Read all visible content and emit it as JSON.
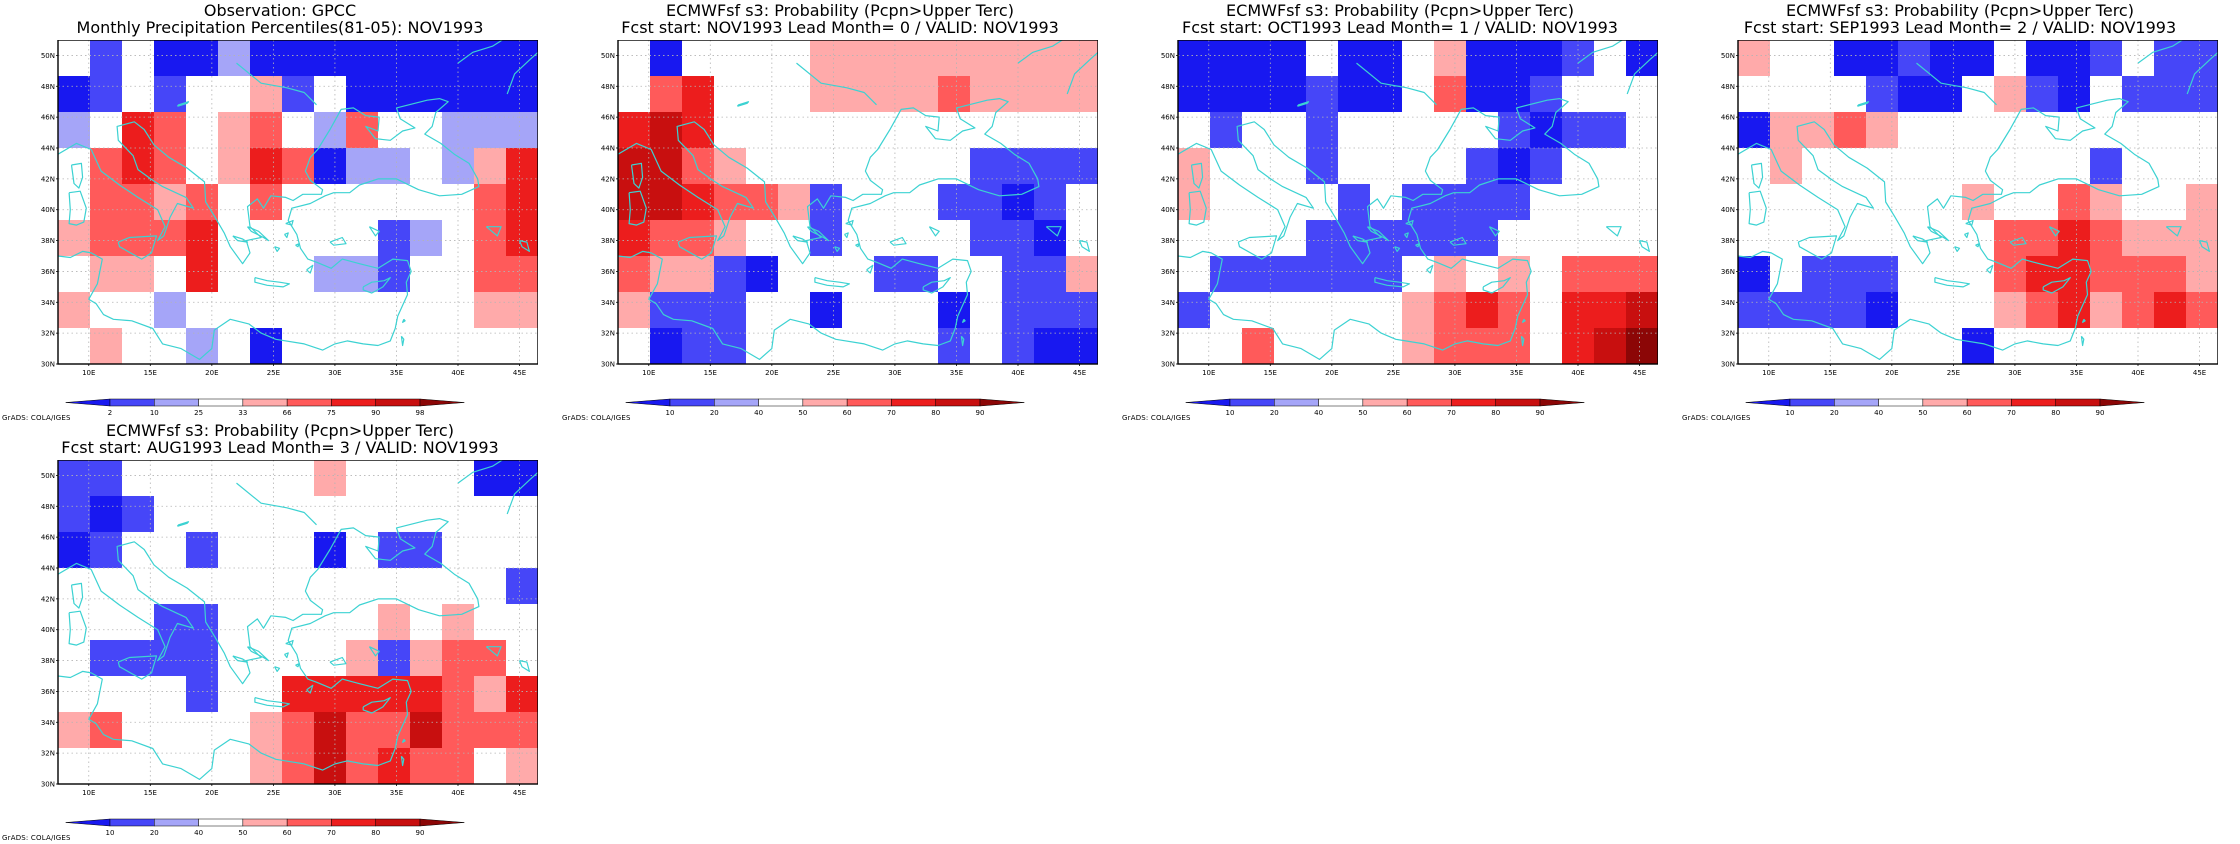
{
  "colors": {
    "c1": "#1818f0",
    "c2": "#4646f8",
    "c3": "#a5a5f8",
    "c4": "#ffffff",
    "c5": "#ffaaaa",
    "c6": "#ff5a5a",
    "c7": "#ec1d1d",
    "c8": "#c80f0f",
    "c9": "#8c0606",
    "coast": "#3cd2d2",
    "frame": "#000000",
    "grid": "#b4b4b4"
  },
  "panels": [
    {
      "id": "gpcc",
      "title1": "Observation: GPCC",
      "title2": "Monthly Precipitation Percentiles(81-05): NOV1993",
      "legend": [
        "2",
        "10",
        "25",
        "33",
        "66",
        "75",
        "90",
        "98"
      ],
      "grid": [
        [
          "c4",
          "c2",
          "c4",
          "c1",
          "c1",
          "c3",
          "c1",
          "c1",
          "c1",
          "c1",
          "c1",
          "c1",
          "c1",
          "c1",
          "c1"
        ],
        [
          "c1",
          "c2",
          "c4",
          "c2",
          "c4",
          "c4",
          "c5",
          "c2",
          "c4",
          "c1",
          "c1",
          "c1",
          "c1",
          "c1",
          "c1"
        ],
        [
          "c3",
          "c4",
          "c7",
          "c6",
          "c4",
          "c5",
          "c6",
          "c4",
          "c3",
          "c6",
          "c4",
          "c4",
          "c3",
          "c3",
          "c3"
        ],
        [
          "c4",
          "c6",
          "c7",
          "c6",
          "c4",
          "c5",
          "c7",
          "c6",
          "c1",
          "c3",
          "c3",
          "c4",
          "c3",
          "c5",
          "c7"
        ],
        [
          "c4",
          "c6",
          "c6",
          "c5",
          "c6",
          "c4",
          "c6",
          "c4",
          "c4",
          "c4",
          "c4",
          "c4",
          "c4",
          "c6",
          "c7"
        ],
        [
          "c5",
          "c6",
          "c6",
          "c6",
          "c7",
          "c4",
          "c4",
          "c4",
          "c4",
          "c4",
          "c2",
          "c3",
          "c4",
          "c6",
          "c7"
        ],
        [
          "c4",
          "c5",
          "c5",
          "c4",
          "c7",
          "c4",
          "c4",
          "c4",
          "c3",
          "c3",
          "c2",
          "c4",
          "c4",
          "c6",
          "c6"
        ],
        [
          "c5",
          "c4",
          "c4",
          "c3",
          "c4",
          "c4",
          "c4",
          "c4",
          "c4",
          "c4",
          "c4",
          "c4",
          "c4",
          "c5",
          "c5"
        ],
        [
          "c4",
          "c5",
          "c4",
          "c4",
          "c3",
          "c4",
          "c1",
          "c4",
          "c4",
          "c4",
          "c4",
          "c4",
          "c4",
          "c4",
          "c4"
        ]
      ]
    },
    {
      "id": "lead0",
      "title1": "ECMWFsf s3: Probability (Pcpn>Upper Terc)",
      "title2": "Fcst start: NOV1993  Lead Month= 0 / VALID: NOV1993",
      "legend": [
        "10",
        "20",
        "40",
        "50",
        "60",
        "70",
        "80",
        "90"
      ],
      "grid": [
        [
          "c4",
          "c1",
          "c4",
          "c4",
          "c4",
          "c4",
          "c5",
          "c5",
          "c5",
          "c5",
          "c5",
          "c5",
          "c5",
          "c5",
          "c5"
        ],
        [
          "c4",
          "c6",
          "c7",
          "c4",
          "c4",
          "c4",
          "c5",
          "c5",
          "c5",
          "c5",
          "c6",
          "c5",
          "c5",
          "c5",
          "c5"
        ],
        [
          "c7",
          "c8",
          "c7",
          "c4",
          "c4",
          "c4",
          "c4",
          "c4",
          "c4",
          "c4",
          "c4",
          "c4",
          "c4",
          "c4",
          "c4"
        ],
        [
          "c8",
          "c8",
          "c6",
          "c5",
          "c4",
          "c4",
          "c4",
          "c4",
          "c4",
          "c4",
          "c4",
          "c2",
          "c2",
          "c2",
          "c2"
        ],
        [
          "c8",
          "c8",
          "c7",
          "c6",
          "c6",
          "c5",
          "c2",
          "c4",
          "c4",
          "c4",
          "c2",
          "c2",
          "c1",
          "c2",
          "c4"
        ],
        [
          "c7",
          "c6",
          "c6",
          "c5",
          "c4",
          "c4",
          "c2",
          "c4",
          "c4",
          "c4",
          "c4",
          "c2",
          "c2",
          "c1",
          "c4"
        ],
        [
          "c6",
          "c5",
          "c5",
          "c2",
          "c1",
          "c4",
          "c4",
          "c4",
          "c2",
          "c2",
          "c4",
          "c4",
          "c2",
          "c2",
          "c5"
        ],
        [
          "c5",
          "c2",
          "c2",
          "c2",
          "c4",
          "c4",
          "c1",
          "c4",
          "c4",
          "c4",
          "c1",
          "c4",
          "c2",
          "c2",
          "c2"
        ],
        [
          "c4",
          "c1",
          "c2",
          "c2",
          "c4",
          "c4",
          "c4",
          "c4",
          "c4",
          "c4",
          "c2",
          "c4",
          "c2",
          "c1",
          "c1"
        ]
      ]
    },
    {
      "id": "lead1",
      "title1": "ECMWFsf s3: Probability (Pcpn>Upper Terc)",
      "title2": "Fcst start: OCT1993  Lead Month= 1 / VALID: NOV1993",
      "legend": [
        "10",
        "20",
        "40",
        "50",
        "60",
        "70",
        "80",
        "90"
      ],
      "grid": [
        [
          "c1",
          "c1",
          "c1",
          "c1",
          "c4",
          "c1",
          "c1",
          "c4",
          "c5",
          "c1",
          "c1",
          "c1",
          "c2",
          "c4",
          "c1"
        ],
        [
          "c1",
          "c1",
          "c1",
          "c1",
          "c2",
          "c1",
          "c1",
          "c4",
          "c6",
          "c1",
          "c1",
          "c2",
          "c4",
          "c4",
          "c4"
        ],
        [
          "c4",
          "c2",
          "c4",
          "c4",
          "c2",
          "c4",
          "c4",
          "c4",
          "c4",
          "c4",
          "c2",
          "c1",
          "c2",
          "c2",
          "c4"
        ],
        [
          "c5",
          "c4",
          "c4",
          "c4",
          "c2",
          "c4",
          "c4",
          "c4",
          "c4",
          "c2",
          "c1",
          "c2",
          "c4",
          "c4",
          "c4"
        ],
        [
          "c5",
          "c4",
          "c4",
          "c4",
          "c4",
          "c2",
          "c4",
          "c2",
          "c2",
          "c2",
          "c2",
          "c4",
          "c4",
          "c4",
          "c4"
        ],
        [
          "c4",
          "c4",
          "c4",
          "c4",
          "c2",
          "c2",
          "c2",
          "c2",
          "c2",
          "c2",
          "c4",
          "c4",
          "c4",
          "c4",
          "c4"
        ],
        [
          "c4",
          "c2",
          "c2",
          "c2",
          "c2",
          "c2",
          "c2",
          "c4",
          "c5",
          "c4",
          "c5",
          "c4",
          "c6",
          "c6",
          "c6"
        ],
        [
          "c2",
          "c4",
          "c4",
          "c4",
          "c4",
          "c4",
          "c4",
          "c5",
          "c6",
          "c7",
          "c6",
          "c4",
          "c7",
          "c7",
          "c8"
        ],
        [
          "c4",
          "c4",
          "c6",
          "c4",
          "c4",
          "c4",
          "c4",
          "c5",
          "c6",
          "c6",
          "c6",
          "c4",
          "c7",
          "c8",
          "c9"
        ]
      ]
    },
    {
      "id": "lead2",
      "title1": "ECMWFsf s3: Probability (Pcpn>Upper Terc)",
      "title2": "Fcst start: SEP1993  Lead Month= 2 / VALID: NOV1993",
      "legend": [
        "10",
        "20",
        "40",
        "50",
        "60",
        "70",
        "80",
        "90"
      ],
      "grid": [
        [
          "c5",
          "c4",
          "c4",
          "c1",
          "c1",
          "c2",
          "c1",
          "c1",
          "c4",
          "c1",
          "c1",
          "c2",
          "c4",
          "c2",
          "c2"
        ],
        [
          "c4",
          "c4",
          "c4",
          "c4",
          "c2",
          "c1",
          "c1",
          "c4",
          "c5",
          "c2",
          "c1",
          "c4",
          "c2",
          "c2",
          "c2"
        ],
        [
          "c1",
          "c5",
          "c5",
          "c6",
          "c5",
          "c4",
          "c4",
          "c4",
          "c4",
          "c4",
          "c4",
          "c4",
          "c4",
          "c4",
          "c4"
        ],
        [
          "c4",
          "c5",
          "c4",
          "c4",
          "c4",
          "c4",
          "c4",
          "c4",
          "c4",
          "c4",
          "c4",
          "c2",
          "c4",
          "c4",
          "c4"
        ],
        [
          "c4",
          "c4",
          "c4",
          "c4",
          "c4",
          "c4",
          "c4",
          "c5",
          "c4",
          "c4",
          "c6",
          "c5",
          "c4",
          "c4",
          "c5"
        ],
        [
          "c4",
          "c4",
          "c4",
          "c4",
          "c4",
          "c4",
          "c4",
          "c4",
          "c6",
          "c6",
          "c7",
          "c6",
          "c5",
          "c5",
          "c5"
        ],
        [
          "c1",
          "c4",
          "c2",
          "c2",
          "c2",
          "c4",
          "c4",
          "c4",
          "c6",
          "c7",
          "c7",
          "c6",
          "c6",
          "c6",
          "c5"
        ],
        [
          "c2",
          "c2",
          "c2",
          "c2",
          "c1",
          "c4",
          "c4",
          "c4",
          "c5",
          "c6",
          "c7",
          "c5",
          "c6",
          "c7",
          "c6"
        ],
        [
          "c4",
          "c4",
          "c4",
          "c4",
          "c4",
          "c4",
          "c4",
          "c1",
          "c4",
          "c4",
          "c4",
          "c4",
          "c4",
          "c4",
          "c4"
        ]
      ]
    },
    {
      "id": "lead3",
      "title1": "ECMWFsf s3: Probability (Pcpn>Upper Terc)",
      "title2": "Fcst start: AUG1993  Lead Month= 3 / VALID: NOV1993",
      "legend": [
        "10",
        "20",
        "40",
        "50",
        "60",
        "70",
        "80",
        "90"
      ],
      "grid": [
        [
          "c2",
          "c2",
          "c4",
          "c4",
          "c4",
          "c4",
          "c4",
          "c4",
          "c5",
          "c4",
          "c4",
          "c4",
          "c4",
          "c1",
          "c1"
        ],
        [
          "c2",
          "c1",
          "c2",
          "c4",
          "c4",
          "c4",
          "c4",
          "c4",
          "c4",
          "c4",
          "c4",
          "c4",
          "c4",
          "c4",
          "c4"
        ],
        [
          "c1",
          "c2",
          "c4",
          "c4",
          "c2",
          "c4",
          "c4",
          "c4",
          "c1",
          "c4",
          "c2",
          "c2",
          "c4",
          "c4",
          "c4"
        ],
        [
          "c4",
          "c4",
          "c4",
          "c4",
          "c4",
          "c4",
          "c4",
          "c4",
          "c4",
          "c4",
          "c4",
          "c4",
          "c4",
          "c4",
          "c2"
        ],
        [
          "c4",
          "c4",
          "c4",
          "c2",
          "c2",
          "c4",
          "c4",
          "c4",
          "c4",
          "c4",
          "c5",
          "c4",
          "c5",
          "c4",
          "c4"
        ],
        [
          "c4",
          "c2",
          "c2",
          "c2",
          "c2",
          "c4",
          "c4",
          "c4",
          "c4",
          "c5",
          "c2",
          "c5",
          "c6",
          "c6",
          "c4"
        ],
        [
          "c4",
          "c4",
          "c4",
          "c4",
          "c2",
          "c4",
          "c4",
          "c7",
          "c7",
          "c7",
          "c7",
          "c7",
          "c6",
          "c5",
          "c7"
        ],
        [
          "c5",
          "c6",
          "c4",
          "c4",
          "c4",
          "c4",
          "c5",
          "c6",
          "c8",
          "c6",
          "c6",
          "c8",
          "c6",
          "c6",
          "c6"
        ],
        [
          "c4",
          "c4",
          "c4",
          "c4",
          "c4",
          "c4",
          "c5",
          "c6",
          "c8",
          "c6",
          "c7",
          "c6",
          "c6",
          "c4",
          "c5"
        ]
      ]
    }
  ],
  "map": {
    "lat_labels": [
      "50N",
      "48N",
      "46N",
      "44N",
      "42N",
      "40N",
      "38N",
      "36N",
      "34N",
      "32N",
      "30N"
    ],
    "lon_labels": [
      "10E",
      "15E",
      "20E",
      "25E",
      "30E",
      "35E",
      "40E",
      "45E"
    ],
    "lon_range": [
      7.5,
      46.5
    ],
    "lat_range": [
      30,
      51
    ]
  },
  "footer": "GrADS: COLA/IGES"
}
